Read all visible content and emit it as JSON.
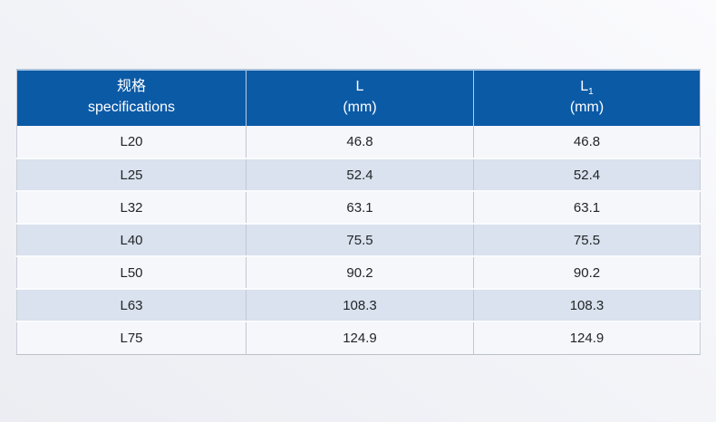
{
  "chart_data": {
    "type": "table",
    "columns": [
      {
        "line1": "规格",
        "sub": "",
        "line2": "specifications"
      },
      {
        "line1": "L",
        "sub": "",
        "line2": "(mm)"
      },
      {
        "line1": "L",
        "sub": "1",
        "line2": "(mm)"
      }
    ],
    "rows": [
      [
        "L20",
        "46.8",
        "46.8"
      ],
      [
        "L25",
        "52.4",
        "52.4"
      ],
      [
        "L32",
        "63.1",
        "63.1"
      ],
      [
        "L40",
        "75.5",
        "75.5"
      ],
      [
        "L50",
        "90.2",
        "90.2"
      ],
      [
        "L63",
        "108.3",
        "108.3"
      ],
      [
        "L75",
        "124.9",
        "124.9"
      ]
    ]
  },
  "colors": {
    "header_bg": "#0b5aa6",
    "header_text": "#ffffff",
    "header_top_border": "#a9c3dd",
    "row_light": "#f6f7fa",
    "row_stripe": "#d9e2ee",
    "cell_text": "#222528",
    "grid_line": "#c3c8d0",
    "page_bg_light": "#fbfbfe",
    "page_bg_dark": "#ebedf2"
  }
}
